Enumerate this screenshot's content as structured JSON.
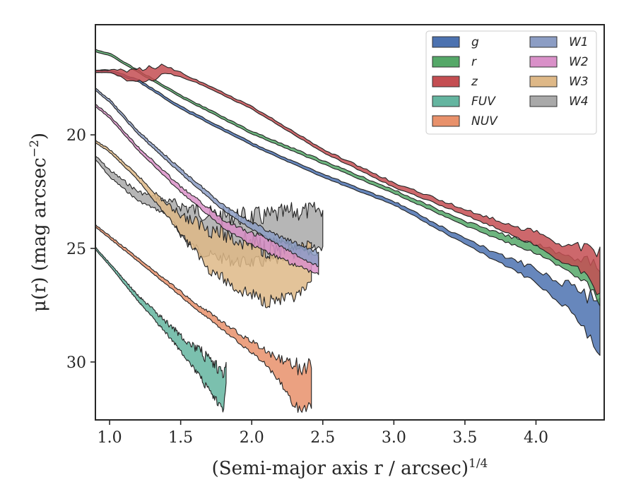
{
  "chart_data": {
    "type": "area",
    "title": "",
    "xlabel": "(Semi-major axis r / arcsec)^1/4",
    "ylabel": "μ(r) (mag arcsec^−2)",
    "xlim": [
      0.9,
      4.48
    ],
    "ylim": [
      32.55,
      15.15
    ],
    "y_inverted": true,
    "xticks": [
      "1.0",
      "1.5",
      "2.0",
      "2.5",
      "3.0",
      "3.5",
      "4.0"
    ],
    "xtick_values": [
      1.0,
      1.5,
      2.0,
      2.5,
      3.0,
      3.5,
      4.0
    ],
    "yticks": [
      "20",
      "25",
      "30"
    ],
    "ytick_values": [
      20,
      25,
      30
    ],
    "grid": false,
    "legend_position": "top-right",
    "legend_columns": 2,
    "series": [
      {
        "name": "g",
        "color": "#4c72b0",
        "x": [
          0.9,
          1.0,
          1.2,
          1.5,
          2.0,
          2.5,
          3.0,
          3.5,
          3.8,
          4.0,
          4.2,
          4.3,
          4.35,
          4.4,
          4.45
        ],
        "y": [
          17.2,
          17.2,
          17.6,
          18.8,
          20.4,
          21.8,
          23.0,
          24.7,
          25.6,
          26.2,
          27.0,
          27.5,
          27.8,
          28.2,
          28.7
        ],
        "halfwidth": [
          0.05,
          0.05,
          0.05,
          0.06,
          0.06,
          0.07,
          0.08,
          0.12,
          0.2,
          0.3,
          0.5,
          0.7,
          0.8,
          1.0,
          1.2
        ]
      },
      {
        "name": "r",
        "color": "#55a868",
        "x": [
          0.9,
          1.0,
          1.2,
          1.5,
          2.0,
          2.5,
          3.0,
          3.5,
          3.8,
          4.0,
          4.2,
          4.3,
          4.35,
          4.4,
          4.45
        ],
        "y": [
          16.3,
          16.45,
          17.2,
          18.3,
          19.9,
          21.2,
          22.5,
          23.9,
          24.6,
          25.0,
          25.6,
          25.9,
          26.0,
          26.3,
          26.6
        ],
        "halfwidth": [
          0.05,
          0.05,
          0.05,
          0.05,
          0.06,
          0.07,
          0.08,
          0.1,
          0.15,
          0.2,
          0.3,
          0.4,
          0.5,
          0.6,
          0.8
        ]
      },
      {
        "name": "z",
        "color": "#c44e52",
        "x": [
          0.9,
          1.0,
          1.15,
          1.3,
          1.4,
          1.6,
          2.0,
          2.5,
          3.0,
          3.5,
          3.8,
          4.0,
          4.2,
          4.3,
          4.35,
          4.4,
          4.45
        ],
        "y": [
          17.2,
          17.2,
          17.4,
          17.3,
          17.1,
          17.6,
          18.8,
          20.7,
          22.2,
          23.4,
          24.1,
          24.6,
          25.2,
          25.4,
          25.6,
          25.8,
          26.0
        ],
        "halfwidth": [
          0.05,
          0.05,
          0.25,
          0.3,
          0.15,
          0.06,
          0.06,
          0.07,
          0.1,
          0.12,
          0.2,
          0.3,
          0.4,
          0.5,
          0.6,
          0.8,
          1.0
        ]
      },
      {
        "name": "FUV",
        "color": "#64b5a0",
        "x": [
          0.9,
          1.0,
          1.2,
          1.4,
          1.55,
          1.65,
          1.72,
          1.8,
          1.82
        ],
        "y": [
          25.0,
          25.7,
          27.2,
          28.5,
          29.5,
          30.2,
          30.8,
          31.3,
          30.3
        ],
        "halfwidth": [
          0.05,
          0.06,
          0.12,
          0.25,
          0.4,
          0.6,
          0.7,
          0.8,
          0.5
        ]
      },
      {
        "name": "NUV",
        "color": "#e8916b",
        "x": [
          0.9,
          1.0,
          1.3,
          1.6,
          1.9,
          2.1,
          2.2,
          2.3,
          2.42
        ],
        "y": [
          24.0,
          24.5,
          26.0,
          27.5,
          28.9,
          29.8,
          30.4,
          31.1,
          31.1
        ],
        "halfwidth": [
          0.05,
          0.06,
          0.08,
          0.12,
          0.2,
          0.3,
          0.5,
          0.9,
          0.9
        ]
      },
      {
        "name": "W1",
        "color": "#8c9dc4",
        "x": [
          0.9,
          1.0,
          1.2,
          1.5,
          1.8,
          2.0,
          2.2,
          2.4,
          2.47
        ],
        "y": [
          18.0,
          18.5,
          19.9,
          21.6,
          23.2,
          24.0,
          24.7,
          25.3,
          25.5
        ],
        "halfwidth": [
          0.05,
          0.06,
          0.07,
          0.1,
          0.12,
          0.15,
          0.2,
          0.3,
          0.3
        ]
      },
      {
        "name": "W2",
        "color": "#d990c8",
        "x": [
          0.9,
          1.0,
          1.2,
          1.5,
          1.8,
          2.0,
          2.2,
          2.4,
          2.47
        ],
        "y": [
          18.7,
          19.2,
          20.6,
          22.4,
          23.9,
          24.6,
          25.1,
          25.6,
          25.7
        ],
        "halfwidth": [
          0.05,
          0.06,
          0.08,
          0.12,
          0.18,
          0.25,
          0.35,
          0.4,
          0.4
        ]
      },
      {
        "name": "W3",
        "color": "#deb887",
        "x": [
          0.9,
          1.0,
          1.2,
          1.4,
          1.55,
          1.7,
          1.9,
          2.1,
          2.3,
          2.42
        ],
        "y": [
          20.3,
          20.7,
          21.9,
          23.3,
          24.2,
          25.0,
          25.7,
          26.1,
          26.2,
          25.8
        ],
        "halfwidth": [
          0.05,
          0.06,
          0.1,
          0.25,
          0.5,
          0.9,
          1.1,
          1.2,
          1.0,
          0.8
        ]
      },
      {
        "name": "W4",
        "color": "#a9a9a9",
        "x": [
          0.9,
          1.0,
          1.2,
          1.4,
          1.55,
          1.7,
          1.9,
          2.1,
          2.3,
          2.5
        ],
        "y": [
          21.0,
          21.7,
          22.7,
          23.2,
          24.0,
          24.4,
          24.6,
          24.6,
          24.4,
          24.1
        ],
        "halfwidth": [
          0.08,
          0.15,
          0.2,
          0.3,
          0.8,
          0.9,
          1.0,
          1.0,
          1.0,
          0.8
        ]
      }
    ]
  }
}
